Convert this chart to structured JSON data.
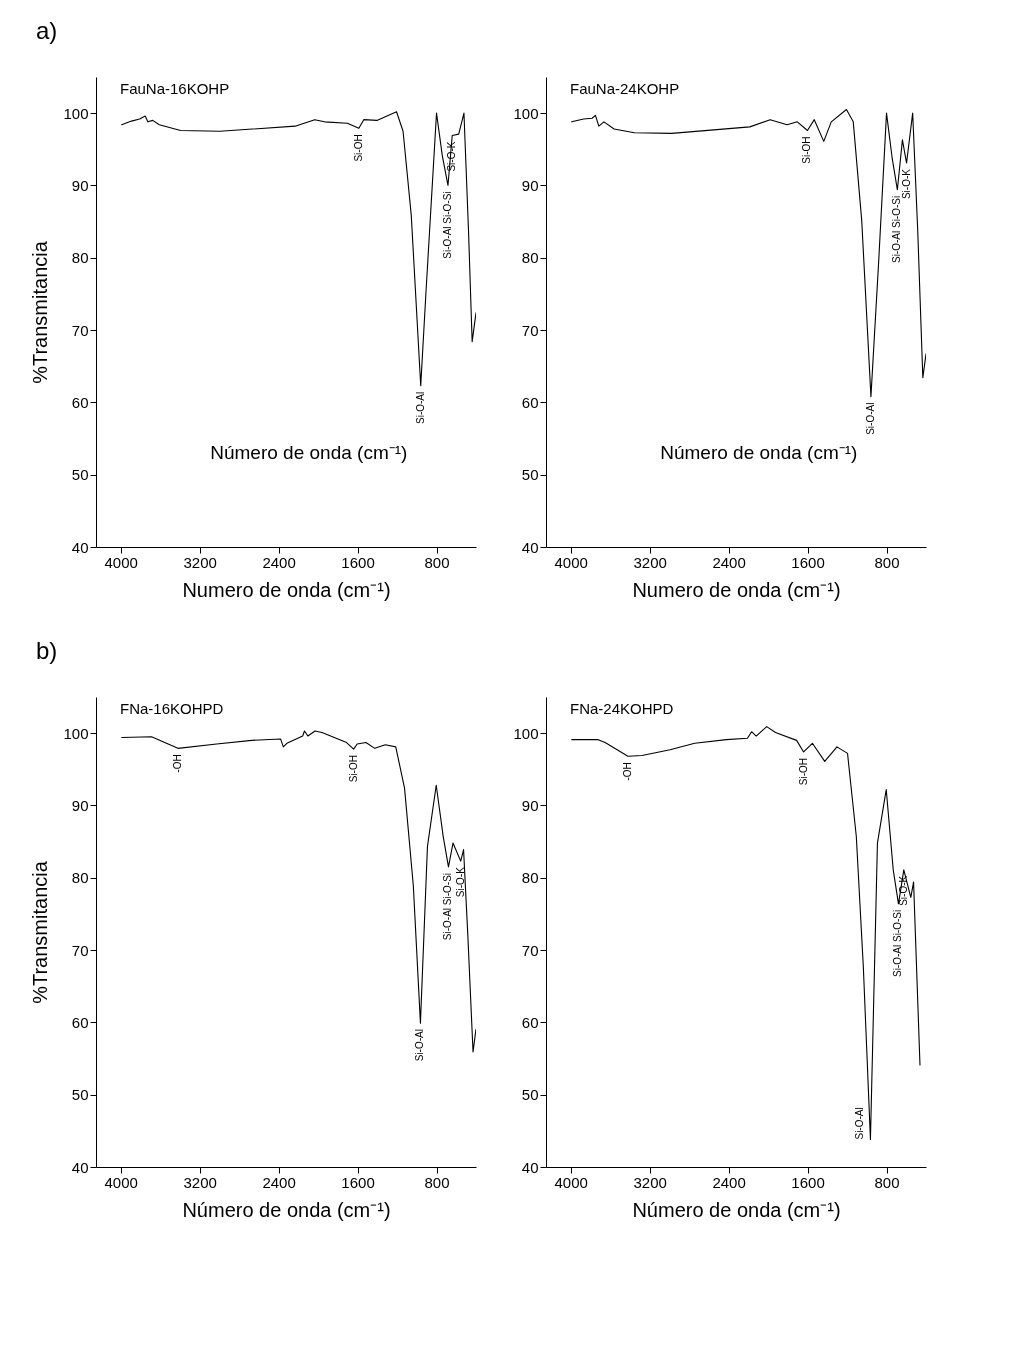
{
  "chart_data": [
    {
      "type": "line",
      "title": "a)",
      "subtitle": "FauNa-16KOHP",
      "xlabel": "Numero de onda (cm⁻¹)",
      "ylabel": "%Transmitancia",
      "xlim": [
        4250,
        400
      ],
      "xticks": [
        4000,
        3200,
        2400,
        1600,
        800
      ],
      "ylim": [
        40,
        105
      ],
      "yticks": [
        40,
        50,
        60,
        70,
        80,
        90,
        100
      ],
      "grid": false,
      "x": [
        3990,
        3890,
        3808,
        3751,
        3725,
        3675,
        3609,
        3393,
        2995,
        2233,
        2034,
        1935,
        1703,
        1587,
        1537,
        1404,
        1205,
        1139,
        1056,
        960,
        907,
        800,
        741,
        684,
        641,
        575,
        522,
        476,
        439,
        400
      ],
      "series": [
        {
          "color": "#000000",
          "values": [
            98.4,
            98.9,
            99.2,
            99.6,
            98.8,
            99.0,
            98.4,
            97.6,
            97.5,
            98.2,
            99.1,
            98.8,
            98.6,
            97.9,
            99.1,
            99.0,
            100.2,
            97.5,
            85.9,
            62.3,
            75.2,
            100.0,
            94.1,
            90.0,
            96.9,
            97.1,
            100.0,
            83.8,
            68.4,
            72.4
          ]
        }
      ],
      "annotations": [
        {
          "text": "Si-OH",
          "x": 1587,
          "y": 97.9
        },
        {
          "text": "Si-O-Al",
          "x": 960,
          "y": 62.3
        },
        {
          "text": "Si-O-Al Si-O-Si",
          "x": 684,
          "y": 90.0
        },
        {
          "text": "Si-O-K",
          "x": 641,
          "y": 96.9
        },
        "Número de onda (cm⁻¹)"
      ]
    },
    {
      "type": "line",
      "subtitle": "FauNa-24KOHP",
      "xlabel": "Numero de onda (cm⁻¹)",
      "xlim": [
        4250,
        400
      ],
      "xticks": [
        4000,
        3200,
        2400,
        1600,
        800
      ],
      "ylim": [
        40,
        105
      ],
      "yticks": [
        40,
        50,
        60,
        70,
        80,
        90,
        100
      ],
      "grid": false,
      "x": [
        3990,
        3869,
        3783,
        3749,
        3715,
        3663,
        3560,
        3354,
        2976,
        2185,
        1979,
        1807,
        1704,
        1601,
        1532,
        1436,
        1360,
        1206,
        1137,
        1051,
        958,
        879,
        800,
        742,
        690,
        639,
        597,
        535,
        484,
        432,
        400
      ],
      "series": [
        {
          "color": "#000000",
          "values": [
            98.8,
            99.2,
            99.3,
            99.7,
            98.2,
            98.8,
            97.8,
            97.3,
            97.2,
            98.1,
            99.1,
            98.4,
            98.8,
            97.6,
            99.1,
            96.1,
            98.8,
            100.5,
            98.8,
            85.1,
            60.8,
            79.6,
            100.0,
            93.7,
            89.4,
            96.3,
            93.1,
            100.0,
            83.8,
            63.4,
            66.7
          ]
        }
      ],
      "annotations": [
        {
          "text": "Si-OH",
          "x": 1601,
          "y": 97.6
        },
        {
          "text": "Si-O-Al",
          "x": 958,
          "y": 60.8
        },
        {
          "text": "Si-O-Al Si-O-Si",
          "x": 690,
          "y": 89.4
        },
        {
          "text": "Si-O-K",
          "x": 597,
          "y": 93.1
        },
        "Número de onda (cm⁻¹)"
      ]
    },
    {
      "type": "line",
      "title": "b)",
      "subtitle": "FNa-16KOHPD",
      "xlabel": "Número de onda (cm⁻¹)",
      "ylabel": "%Transmitancia",
      "xlim": [
        4250,
        400
      ],
      "xticks": [
        4000,
        3200,
        2400,
        1600,
        800
      ],
      "ylim": [
        40,
        105
      ],
      "yticks": [
        40,
        50,
        60,
        70,
        80,
        90,
        100
      ],
      "grid": false,
      "x": [
        3989,
        3687,
        3420,
        3028,
        2672,
        2380,
        2352,
        2316,
        2156,
        2138,
        2103,
        2031,
        1960,
        1711,
        1640,
        1604,
        1515,
        1426,
        1319,
        1213,
        1124,
        1035,
        963,
        892,
        803,
        732,
        679,
        633,
        555,
        526,
        483,
        430,
        401
      ],
      "series": [
        {
          "color": "#000000",
          "values": [
            99.4,
            99.5,
            97.9,
            98.5,
            99.0,
            99.2,
            98.1,
            98.6,
            99.6,
            100.3,
            99.6,
            100.3,
            100.1,
            98.7,
            97.8,
            98.5,
            98.7,
            97.9,
            98.4,
            98.1,
            92.4,
            78.9,
            59.9,
            84.3,
            92.8,
            85.7,
            81.5,
            84.8,
            82.3,
            83.9,
            72.1,
            55.9,
            59.0
          ]
        }
      ],
      "annotations": [
        {
          "text": "-OH",
          "x": 3420,
          "y": 97.9
        },
        {
          "text": "Si-OH",
          "x": 1640,
          "y": 97.8
        },
        {
          "text": "Si-O-Al",
          "x": 963,
          "y": 59.9
        },
        {
          "text": "Si-O-Al Si-O-Si",
          "x": 679,
          "y": 81.5
        },
        {
          "text": "Si-O-K",
          "x": 555,
          "y": 82.3
        }
      ]
    },
    {
      "type": "line",
      "subtitle": "FNa-24KOHPD",
      "xlabel": "Número de onda (cm⁻¹)",
      "xlim": [
        4250,
        400
      ],
      "xticks": [
        4000,
        3200,
        2400,
        1600,
        800
      ],
      "ylim": [
        40,
        105
      ],
      "yticks": [
        40,
        50,
        60,
        70,
        80,
        90,
        100
      ],
      "grid": false,
      "x": [
        3989,
        3722,
        3651,
        3420,
        3277,
        2993,
        2743,
        2423,
        2209,
        2167,
        2120,
        2014,
        1925,
        1711,
        1640,
        1551,
        1426,
        1302,
        1195,
        1106,
        1035,
        963,
        892,
        803,
        732,
        679,
        625,
        554,
        526,
        461
      ],
      "series": [
        {
          "color": "#000000",
          "values": [
            99.1,
            99.1,
            98.7,
            96.8,
            96.9,
            97.7,
            98.6,
            99.1,
            99.3,
            100.2,
            99.6,
            100.9,
            100.1,
            99.0,
            97.4,
            98.6,
            96.1,
            98.1,
            97.2,
            85.7,
            67.7,
            43.8,
            84.8,
            92.2,
            81.1,
            76.4,
            81.1,
            77.3,
            79.4,
            54.1
          ]
        }
      ],
      "annotations": [
        {
          "text": "-OH",
          "x": 3420,
          "y": 96.8
        },
        {
          "text": "Si-OH",
          "x": 1640,
          "y": 97.4
        },
        {
          "text": "Si-O-Al",
          "x": 963,
          "y": 43.8
        },
        {
          "text": "Si-O-Al Si-O-Si",
          "x": 679,
          "y": 76.4
        },
        {
          "text": "Si-O-K",
          "x": 625,
          "y": 81.1
        }
      ]
    }
  ]
}
